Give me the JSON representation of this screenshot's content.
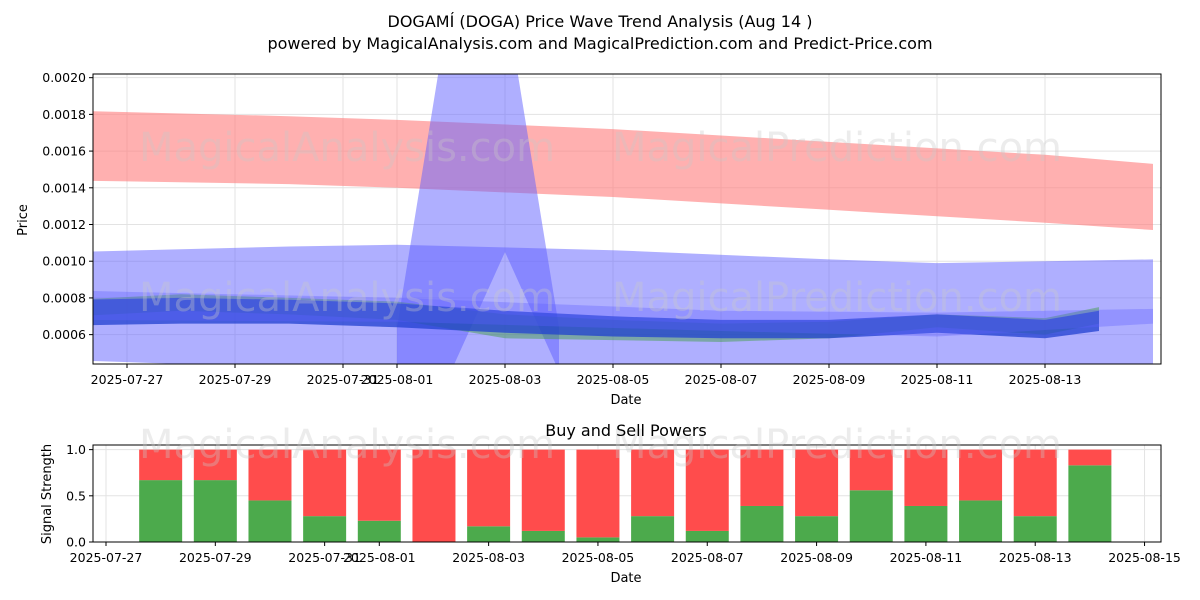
{
  "title": "DOGAMÍ (DOGA) Price Wave Trend Analysis (Aug 14 )",
  "subtitle": "powered by MagicalAnalysis.com and MagicalPrediction.com and Predict-Price.com",
  "watermarks": [
    "MagicalAnalysis.com",
    "MagicalPrediction.com"
  ],
  "colors": {
    "sell_band": "#ff8080",
    "blue_band": "#5f5fff",
    "trend_blue": "#2040d0",
    "green_band": "#3c9c3c",
    "buy": "#4caa4c",
    "sell": "#ff4c4c"
  },
  "chart_data": [
    {
      "type": "area",
      "xlabel": "Date",
      "ylabel": "Price",
      "ylim": [
        0.00044,
        0.00202
      ],
      "grid": true,
      "x_tick_labels": [
        "2025-07-27",
        "2025-07-29",
        "2025-07-31",
        "2025-08-01",
        "2025-08-03",
        "2025-08-05",
        "2025-08-07",
        "2025-08-09",
        "2025-08-11",
        "2025-08-13"
      ],
      "y_tick_labels": [
        "0.0006",
        "0.0008",
        "0.0010",
        "0.0012",
        "0.0014",
        "0.0016",
        "0.0018",
        "0.0020"
      ],
      "y_ticks": [
        0.0006,
        0.0008,
        0.001,
        0.0012,
        0.0014,
        0.0016,
        0.0018,
        0.002
      ],
      "series": [
        {
          "kind": "red-band",
          "x": [
            "2025-07-26",
            "2025-07-30",
            "2025-08-01",
            "2025-08-05",
            "2025-08-09",
            "2025-08-13",
            "2025-08-15"
          ],
          "upper": [
            0.00182,
            0.00179,
            0.00177,
            0.00172,
            0.00165,
            0.00158,
            0.00153
          ],
          "lower": [
            0.00144,
            0.00142,
            0.0014,
            0.00135,
            0.00128,
            0.00121,
            0.00117
          ]
        },
        {
          "kind": "blue-wide-band",
          "x": [
            "2025-07-26",
            "2025-07-30",
            "2025-08-01",
            "2025-08-05",
            "2025-08-09",
            "2025-08-11",
            "2025-08-15"
          ],
          "upper": [
            0.00105,
            0.00108,
            0.00109,
            0.00106,
            0.00101,
            0.00099,
            0.00101
          ],
          "lower": [
            0.00046,
            0.00042,
            0.0004,
            0.00038,
            0.00039,
            0.00039,
            0.00043
          ]
        },
        {
          "kind": "blue-spike",
          "x": [
            "2025-08-01",
            "2025-08-02",
            "2025-08-03",
            "2025-08-04"
          ],
          "upper": [
            0.00064,
            0.00245,
            0.00245,
            0.00064
          ],
          "lower": [
            0.0004,
            0.0004,
            0.00105,
            0.0004
          ]
        },
        {
          "kind": "green-bands",
          "x": [
            "2025-07-26",
            "2025-07-28",
            "2025-07-30",
            "2025-08-01",
            "2025-08-03",
            "2025-08-05",
            "2025-08-07",
            "2025-08-09",
            "2025-08-11",
            "2025-08-13",
            "2025-08-14"
          ],
          "upper": [
            0.00079,
            0.00082,
            0.0008,
            0.00078,
            0.00071,
            0.00068,
            0.00066,
            0.00067,
            0.00071,
            0.00069,
            0.00075
          ],
          "lower": [
            0.0007,
            0.00073,
            0.00071,
            0.00068,
            0.00058,
            0.00057,
            0.00056,
            0.00058,
            0.00064,
            0.0006,
            0.00066
          ]
        },
        {
          "kind": "blue-trend",
          "x": [
            "2025-07-26",
            "2025-07-28",
            "2025-07-30",
            "2025-08-01",
            "2025-08-03",
            "2025-08-05",
            "2025-08-07",
            "2025-08-09",
            "2025-08-11",
            "2025-08-13",
            "2025-08-14"
          ],
          "upper": [
            0.00079,
            0.0008,
            0.00079,
            0.00077,
            0.00073,
            0.0007,
            0.00068,
            0.00068,
            0.00071,
            0.00068,
            0.00073
          ],
          "lower": [
            0.00065,
            0.00066,
            0.00066,
            0.00064,
            0.00061,
            0.00059,
            0.00058,
            0.00058,
            0.00061,
            0.00058,
            0.00062
          ]
        },
        {
          "kind": "blue-light-trend",
          "x": [
            "2025-07-26",
            "2025-08-01",
            "2025-08-07",
            "2025-08-11",
            "2025-08-15"
          ],
          "upper": [
            0.00084,
            0.0008,
            0.00073,
            0.00072,
            0.00074
          ],
          "lower": [
            0.00068,
            0.00067,
            0.00062,
            0.00059,
            0.00066
          ]
        }
      ]
    },
    {
      "type": "bar",
      "title": "Buy and Sell Powers",
      "xlabel": "Date",
      "ylabel": "Signal Strength",
      "ylim": [
        0,
        1.05
      ],
      "grid": true,
      "x_tick_labels": [
        "2025-07-27",
        "2025-07-29",
        "2025-07-31",
        "2025-08-01",
        "2025-08-03",
        "2025-08-05",
        "2025-08-07",
        "2025-08-09",
        "2025-08-11",
        "2025-08-13",
        "2025-08-15"
      ],
      "y_tick_labels": [
        "0.0",
        "0.5",
        "1.0"
      ],
      "y_ticks": [
        0,
        0.5,
        1.0
      ],
      "categories": [
        "2025-07-28",
        "2025-07-29",
        "2025-07-30",
        "2025-07-31",
        "2025-08-01",
        "2025-08-02",
        "2025-08-03",
        "2025-08-04",
        "2025-08-05",
        "2025-08-06",
        "2025-08-07",
        "2025-08-08",
        "2025-08-09",
        "2025-08-10",
        "2025-08-11",
        "2025-08-12",
        "2025-08-13",
        "2025-08-14"
      ],
      "series": [
        {
          "name": "Buy",
          "values": [
            0.67,
            0.67,
            0.45,
            0.28,
            0.23,
            0.0,
            0.17,
            0.12,
            0.05,
            0.28,
            0.12,
            0.39,
            0.28,
            0.56,
            0.39,
            0.45,
            0.28,
            0.83
          ]
        },
        {
          "name": "Sell",
          "values": [
            0.33,
            0.33,
            0.55,
            0.72,
            0.77,
            1.0,
            0.83,
            0.88,
            0.95,
            0.72,
            0.88,
            0.61,
            0.72,
            0.44,
            0.61,
            0.55,
            0.72,
            0.17
          ]
        }
      ]
    }
  ]
}
